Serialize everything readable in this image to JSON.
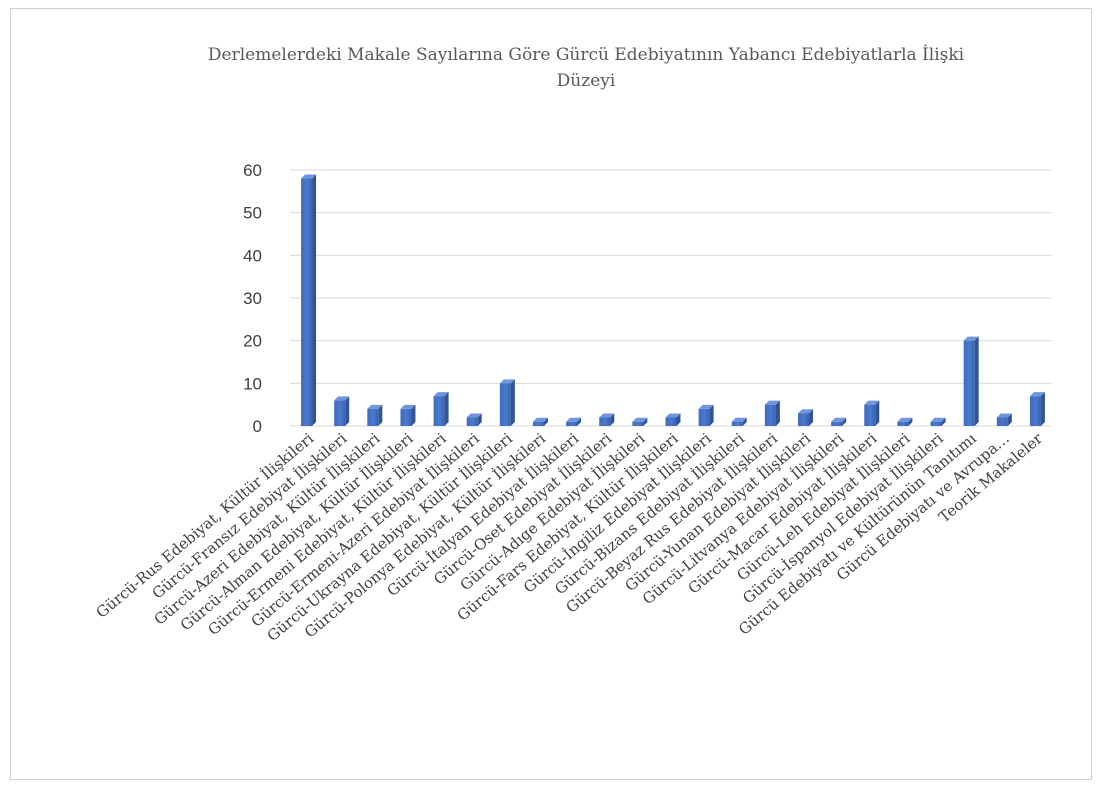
{
  "chart_data": {
    "type": "bar",
    "title_lines": [
      "Derlemelerdeki Makale Sayılarına Göre Gürcü Edebiyatının  Yabancı Edebiyatlarla İlişki",
      "Düzeyi"
    ],
    "xlabel": "",
    "ylabel": "",
    "ylim": [
      0,
      60
    ],
    "yticks": [
      0,
      10,
      20,
      30,
      40,
      50,
      60
    ],
    "grid": true,
    "legend": "none",
    "bar_color": "#4472c4",
    "categories": [
      "Gürcü-Rus Edebiyat, Kültür  İlişkileri",
      "Gürcü-Fransız Edebiyat İlişkileri",
      "Gürcü-Azeri Edebiyat, Kültür İlişkileri",
      "Gürcü-Alman Edebiyat, Kültür İlişkileri",
      "Gürcü-Ermeni Edebiyat, Kültür İlişkileri",
      "Gürcü-Ermeni-Azeri Edebiyat İlişkileri",
      "Gürcü-Ukrayna Edebiyat, Kültür İlişkileri",
      "Gürcü-Polonya Edebiyat, Kültür İlişkileri",
      "Gürcü-İtalyan Edebiyat İlişkileri",
      "Gürcü-Oset Edebiyat İlişkileri",
      "Gürcü-Adıge Edebiyat İlişkileri",
      "Gürcü-Fars Edebiyat, Kültür İlişkileri",
      "Gürcü-İngiliz Edebiyat İlişkileri",
      "Gürcü-Bizans Edebiyat İlişkileri",
      "Gürcü-Beyaz Rus Edebiyat İlişkileri",
      "Gürcü-Yunan Edebiyat İlişkileri",
      "Gürcü-Litvanya Edebiyat İlişkileri",
      "Gürcü-Macar Edebiyat İlişkileri",
      "Gürcü-Leh Edebiyat İlişkileri",
      "Gürcü-İspanyol Edebiyat İlişkileri",
      "Gürcü Edebiyatı ve Kültürünün Tanıtımı",
      "Gürcü Edebiyatı ve Avrupa…",
      "Teorik Makaleler"
    ],
    "values": [
      58,
      6,
      4,
      4,
      7,
      2,
      10,
      1,
      1,
      2,
      1,
      2,
      4,
      1,
      5,
      3,
      1,
      5,
      1,
      1,
      20,
      2,
      7
    ]
  }
}
